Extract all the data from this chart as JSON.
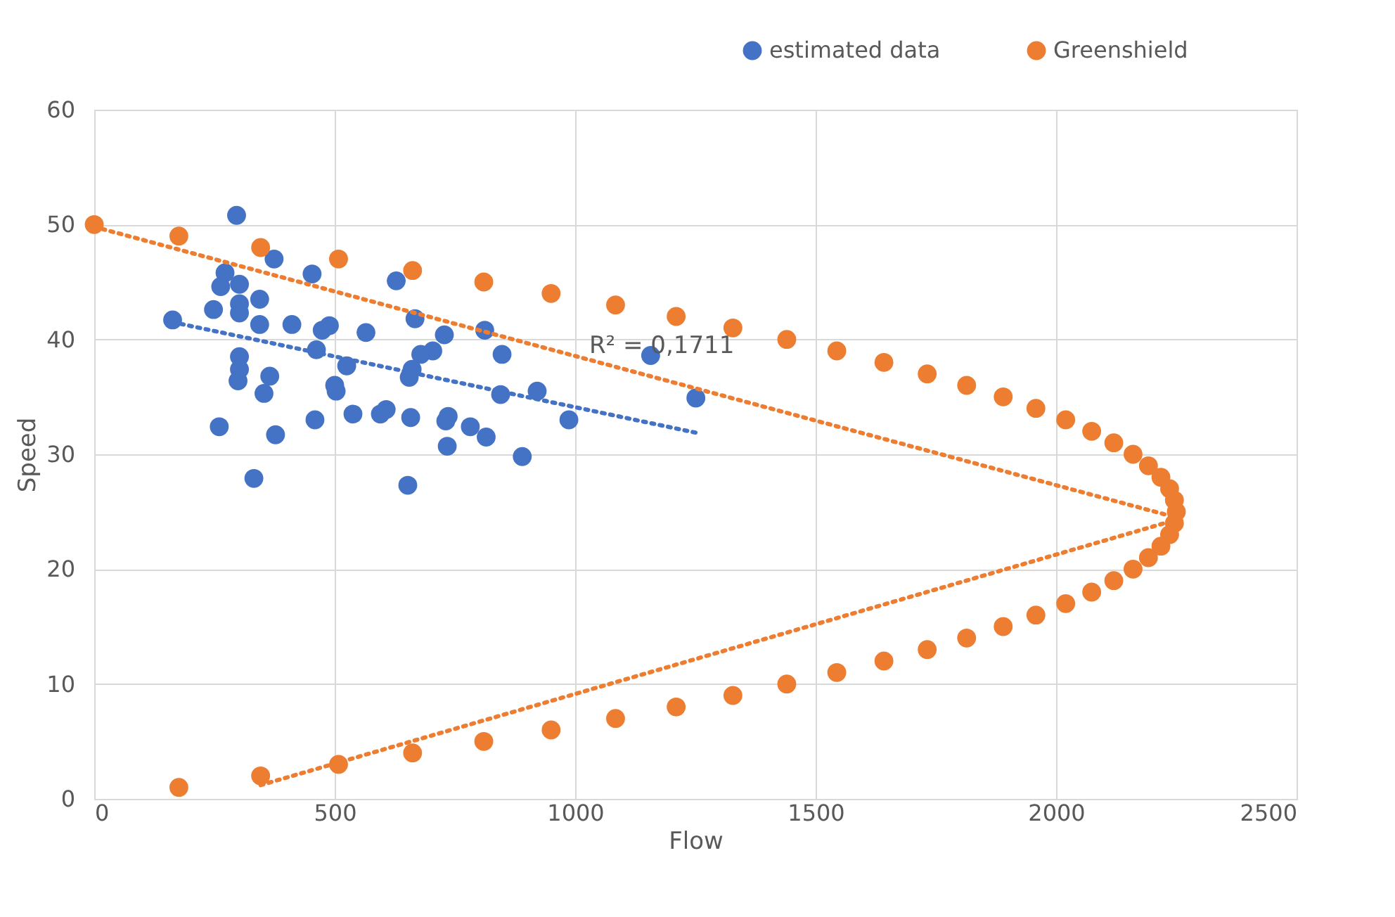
{
  "chart_data": {
    "type": "scatter",
    "xlabel": "Flow",
    "ylabel": "Speed",
    "xlim": [
      0,
      2500
    ],
    "xticks": [
      0,
      500,
      1000,
      1500,
      2000,
      2500
    ],
    "ylim": [
      0,
      60
    ],
    "yticks": [
      0,
      10,
      20,
      30,
      40,
      50,
      60
    ],
    "grid": true,
    "legend": "top right",
    "marker": "circle",
    "annotations": [
      "R² = 0,1711"
    ],
    "series": [
      {
        "name": "estimated data",
        "color": "#4472c4",
        "x": [
          163,
          296,
          272,
          263,
          248,
          302,
          302,
          302,
          344,
          344,
          374,
          453,
          411,
          489,
          565,
          667,
          628,
          728,
          812,
          848,
          302,
          302,
          299,
          365,
          353,
          462,
          525,
          500,
          503,
          679,
          661,
          655,
          704,
          538,
          595,
          607,
          658,
          736,
          731,
          782,
          459,
          260,
          377,
          734,
          815,
          332,
          652,
          890,
          921,
          987,
          1157,
          1251,
          845,
          474
        ],
        "values": [
          41.7,
          50.8,
          45.8,
          44.6,
          42.6,
          44.8,
          43.1,
          42.3,
          41.3,
          43.5,
          47.0,
          45.7,
          41.3,
          41.2,
          40.6,
          41.8,
          45.1,
          40.4,
          40.8,
          38.7,
          38.5,
          37.4,
          36.4,
          36.8,
          35.3,
          39.1,
          37.7,
          36.0,
          35.5,
          38.7,
          37.4,
          36.7,
          39.0,
          33.5,
          33.5,
          33.9,
          33.2,
          33.3,
          32.9,
          32.4,
          33.0,
          32.4,
          31.7,
          30.7,
          31.5,
          27.9,
          27.3,
          29.8,
          35.5,
          33.0,
          38.6,
          34.9,
          35.2,
          40.8
        ]
      },
      {
        "name": "Greenshield",
        "color": "#ed7d31",
        "x": [
          0,
          176,
          346,
          508,
          662,
          810,
          950,
          1084,
          1210,
          1328,
          1440,
          1544,
          1642,
          1732,
          1814,
          1890,
          1958,
          2020,
          2074,
          2120,
          2160,
          2192,
          2218,
          2236,
          2246,
          2250,
          2246,
          2236,
          2218,
          2192,
          2160,
          2120,
          2074,
          2020,
          1958,
          1890,
          1814,
          1732,
          1642,
          1544,
          1440,
          1328,
          1210,
          1084,
          950,
          810,
          662,
          508,
          346,
          176
        ],
        "values": [
          50,
          49,
          48,
          47,
          46,
          45,
          44,
          43,
          42,
          41,
          40,
          39,
          38,
          37,
          36,
          35,
          34,
          33,
          32,
          31,
          30,
          29,
          28,
          27,
          26,
          25,
          24,
          23,
          22,
          21,
          20,
          19,
          18,
          17,
          16,
          15,
          14,
          13,
          12,
          11,
          10,
          9,
          8,
          7,
          6,
          5,
          4,
          3,
          2,
          1
        ]
      },
      {
        "color": "#4472c4",
        "type": "line",
        "line_style": "dotted",
        "marker": "none",
        "x": [
          163,
          1260
        ],
        "values": [
          41.5,
          31.8
        ]
      },
      {
        "color": "#ed7d31",
        "type": "line",
        "line_style": "dotted",
        "marker": "none",
        "x": [
          0,
          2250
        ],
        "values": [
          49.8,
          24.5
        ]
      },
      {
        "color": "#ed7d31",
        "type": "line",
        "line_style": "dotted",
        "marker": "none",
        "x": [
          346,
          2250
        ],
        "values": [
          1.2,
          24.3
        ]
      }
    ]
  }
}
